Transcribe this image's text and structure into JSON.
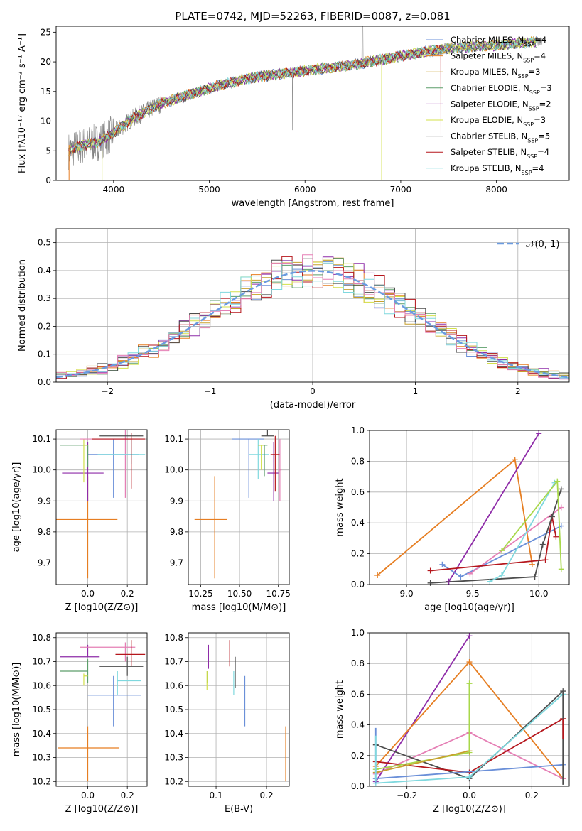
{
  "colors": {
    "Chabrier MILES": "#6a8fd8",
    "Salpeter MILES": "#e67e22",
    "Kroupa MILES": "#c7a02e",
    "Chabrier ELODIE": "#5c9e6a",
    "Salpeter ELODIE": "#8e2ba8",
    "Kroupa ELODIE": "#d3e04a",
    "Chabrier STELIB": "#4d4d4d",
    "Salpeter STELIB": "#b5161c",
    "Kroupa STELIB": "#7fd8de",
    "pink": "#e57fb5",
    "lime": "#a8d84a",
    "spectrum": "#808080",
    "normal": "#6a9be0"
  },
  "chart_data": [
    {
      "id": "spectrum",
      "type": "line",
      "title": "PLATE=0742, MJD=52263, FIBERID=0087, z=0.081",
      "xlabel": "wavelength [Angstrom, rest frame]",
      "ylabel": "Flux [fλ10⁻¹⁷ erg cm⁻² s⁻¹ A⁻¹]",
      "xlim": [
        3400,
        8760
      ],
      "ylim": [
        0,
        26
      ],
      "xticks": [
        4000,
        5000,
        6000,
        7000,
        8000
      ],
      "yticks": [
        0,
        5,
        10,
        15,
        20,
        25
      ],
      "continuum": [
        [
          3530,
          5
        ],
        [
          3700,
          6
        ],
        [
          3850,
          6.5
        ],
        [
          4000,
          8
        ],
        [
          4200,
          10.5
        ],
        [
          4500,
          13
        ],
        [
          4800,
          14.5
        ],
        [
          5100,
          16
        ],
        [
          5500,
          17.5
        ],
        [
          6000,
          18.5
        ],
        [
          6500,
          19.5
        ],
        [
          7000,
          21
        ],
        [
          7500,
          22.3
        ],
        [
          8000,
          22.8
        ],
        [
          8500,
          23.5
        ]
      ],
      "legend": [
        {
          "name": "Chabrier MILES",
          "nssp": "4"
        },
        {
          "name": "Salpeter MILES",
          "nssp": "4"
        },
        {
          "name": "Kroupa MILES",
          "nssp": "3"
        },
        {
          "name": "Chabrier ELODIE",
          "nssp": "3"
        },
        {
          "name": "Salpeter ELODIE",
          "nssp": "2"
        },
        {
          "name": "Kroupa ELODIE",
          "nssp": "3"
        },
        {
          "name": "Chabrier STELIB",
          "nssp": "5"
        },
        {
          "name": "Salpeter STELIB",
          "nssp": "4"
        },
        {
          "name": "Kroupa STELIB",
          "nssp": "4"
        }
      ]
    },
    {
      "id": "residuals",
      "type": "bar",
      "xlabel": "(data-model)/error",
      "ylabel": "Normed distribution",
      "xlim": [
        -2.5,
        2.5
      ],
      "ylim": [
        0,
        0.55
      ],
      "xticks": [
        -2,
        -1,
        0,
        1,
        2
      ],
      "yticks": [
        0.0,
        0.1,
        0.2,
        0.3,
        0.4,
        0.5
      ],
      "bin_width": 0.1,
      "legend": "𝒩(0, 1)",
      "grid": true
    },
    {
      "id": "age_vs_Z",
      "type": "scatter",
      "xlabel": "Z [log10(Z/Z⊙)]",
      "ylabel": "age  [log10(age/yr)]",
      "xlim": [
        -0.16,
        0.3
      ],
      "ylim": [
        9.63,
        10.13
      ],
      "xticks": [
        0.0,
        0.2
      ],
      "yticks": [
        9.7,
        9.8,
        9.9,
        10.0,
        10.1
      ],
      "points": [
        {
          "c": "Salpeter MILES",
          "x": 0.0,
          "y": 9.84,
          "xerr": [
            0.16,
            0.15
          ],
          "yerr": [
            0.19,
            0.14
          ]
        },
        {
          "c": "Chabrier MILES",
          "x": 0.13,
          "y": 10.05,
          "xerr": [
            0.13,
            0.13
          ],
          "yerr": [
            0.14,
            0.05
          ]
        },
        {
          "c": "Salpeter ELODIE",
          "x": 0.0,
          "y": 9.99,
          "xerr": [
            0.13,
            0.08
          ],
          "yerr": [
            0.09,
            0.1
          ]
        },
        {
          "c": "Chabrier ELODIE",
          "x": 0.0,
          "y": 10.08,
          "xerr": [
            0.14,
            0.0
          ],
          "yerr": [
            0.07,
            0.0
          ]
        },
        {
          "c": "Kroupa ELODIE",
          "x": -0.02,
          "y": 10.08,
          "xerr": [
            0.0,
            0.02
          ],
          "yerr": [
            0.12,
            0.02
          ]
        },
        {
          "c": "pink",
          "x": 0.19,
          "y": 10.1,
          "xerr": [
            0.23,
            0.03
          ],
          "yerr": [
            0.19,
            0.03
          ]
        },
        {
          "c": "Kroupa STELIB",
          "x": 0.22,
          "y": 10.05,
          "xerr": [
            0.17,
            0.07
          ],
          "yerr": [
            0.03,
            0.05
          ]
        },
        {
          "c": "Salpeter STELIB",
          "x": 0.22,
          "y": 10.1,
          "xerr": [
            0.2,
            0.07
          ],
          "yerr": [
            0.16,
            0.02
          ]
        },
        {
          "c": "Chabrier STELIB",
          "x": 0.2,
          "y": 10.11,
          "xerr": [
            0.14,
            0.08
          ],
          "yerr": [
            0.0,
            0.0
          ]
        }
      ]
    },
    {
      "id": "age_vs_mass",
      "type": "scatter",
      "xlabel": "mass [log10(M/M⊙)]",
      "ylabel": "",
      "xlim": [
        10.17,
        10.82
      ],
      "ylim": [
        9.63,
        10.13
      ],
      "xticks": [
        10.25,
        10.5,
        10.75
      ],
      "yticks": [
        9.7,
        9.8,
        9.9,
        10.0,
        10.1
      ],
      "points": [
        {
          "c": "Salpeter MILES",
          "x": 10.34,
          "y": 9.84,
          "xerr": [
            0.13,
            0.08
          ],
          "yerr": [
            0.19,
            0.14
          ]
        },
        {
          "c": "Chabrier MILES",
          "x": 10.56,
          "y": 10.1,
          "xerr": [
            0.11,
            0.1
          ],
          "yerr": [
            0.19,
            0.0
          ]
        },
        {
          "c": "Kroupa STELIB",
          "x": 10.62,
          "y": 10.05,
          "xerr": [
            0.06,
            0.07
          ],
          "yerr": [
            0.08,
            0.05
          ]
        },
        {
          "c": "Chabrier ELODIE",
          "x": 10.66,
          "y": 10.08,
          "xerr": [
            0.04,
            0.02
          ],
          "yerr": [
            0.1,
            0.0
          ]
        },
        {
          "c": "Kroupa ELODIE",
          "x": 10.64,
          "y": 10.08,
          "xerr": [
            0.02,
            0.02
          ],
          "yerr": [
            0.08,
            0.0
          ]
        },
        {
          "c": "Salpeter ELODIE",
          "x": 10.72,
          "y": 9.99,
          "xerr": [
            0.04,
            0.03
          ],
          "yerr": [
            0.09,
            0.1
          ]
        },
        {
          "c": "Chabrier STELIB",
          "x": 10.68,
          "y": 10.11,
          "xerr": [
            0.04,
            0.04
          ],
          "yerr": [
            0.0,
            0.02
          ]
        },
        {
          "c": "Salpeter STELIB",
          "x": 10.73,
          "y": 10.05,
          "xerr": [
            0.03,
            0.03
          ],
          "yerr": [
            0.12,
            0.06
          ]
        },
        {
          "c": "pink",
          "x": 10.76,
          "y": 10.0,
          "xerr": [
            0.01,
            0.01
          ],
          "yerr": [
            0.1,
            0.1
          ]
        }
      ]
    },
    {
      "id": "weight_vs_age",
      "type": "line",
      "xlabel": "age  [log10(age/yr)]",
      "ylabel": "mass weight",
      "xlim": [
        8.72,
        10.23
      ],
      "ylim": [
        0.0,
        1.0
      ],
      "xticks": [
        9.0,
        9.5,
        10.0
      ],
      "yticks": [
        0.0,
        0.2,
        0.4,
        0.6,
        0.8,
        1.0
      ],
      "grid": true,
      "series": [
        {
          "c": "Salpeter MILES",
          "x": [
            8.78,
            9.82,
            9.95
          ],
          "y": [
            0.06,
            0.81,
            0.13
          ]
        },
        {
          "c": "Salpeter ELODIE",
          "x": [
            9.32,
            10.0
          ],
          "y": [
            0.02,
            0.98
          ]
        },
        {
          "c": "Chabrier MILES",
          "x": [
            9.27,
            9.41,
            10.17
          ],
          "y": [
            0.13,
            0.05,
            0.38
          ]
        },
        {
          "c": "pink",
          "x": [
            9.48,
            10.17
          ],
          "y": [
            0.07,
            0.5
          ]
        },
        {
          "c": "Salpeter STELIB",
          "x": [
            9.18,
            10.05,
            10.1,
            10.13
          ],
          "y": [
            0.09,
            0.16,
            0.44,
            0.31
          ]
        },
        {
          "c": "Chabrier STELIB",
          "x": [
            9.18,
            9.97,
            10.03,
            10.1,
            10.17
          ],
          "y": [
            0.01,
            0.05,
            0.26,
            0.44,
            0.62
          ]
        },
        {
          "c": "Kroupa STELIB",
          "x": [
            9.63,
            9.72,
            10.12
          ],
          "y": [
            0.02,
            0.06,
            0.66
          ]
        },
        {
          "c": "lime",
          "x": [
            9.72,
            10.14,
            10.17
          ],
          "y": [
            0.22,
            0.67,
            0.1
          ]
        }
      ]
    },
    {
      "id": "mass_vs_Z",
      "type": "scatter",
      "xlabel": "Z [log10(Z/Z⊙)]",
      "ylabel": "mass [log10(M/M⊙)]",
      "xlim": [
        -0.16,
        0.3
      ],
      "ylim": [
        10.18,
        10.82
      ],
      "xticks": [
        0.0,
        0.2
      ],
      "yticks": [
        10.2,
        10.3,
        10.4,
        10.5,
        10.6,
        10.7,
        10.8
      ],
      "points": [
        {
          "c": "Salpeter MILES",
          "x": 0.0,
          "y": 10.34,
          "xerr": [
            0.15,
            0.16
          ],
          "yerr": [
            0.14,
            0.09
          ]
        },
        {
          "c": "Chabrier MILES",
          "x": 0.13,
          "y": 10.56,
          "xerr": [
            0.13,
            0.14
          ],
          "yerr": [
            0.13,
            0.08
          ]
        },
        {
          "c": "Salpeter ELODIE",
          "x": 0.0,
          "y": 10.72,
          "xerr": [
            0.14,
            0.06
          ],
          "yerr": [
            0.0,
            0.05
          ]
        },
        {
          "c": "Chabrier ELODIE",
          "x": 0.0,
          "y": 10.66,
          "xerr": [
            0.14,
            0.0
          ],
          "yerr": [
            0.05,
            0.05
          ]
        },
        {
          "c": "Kroupa ELODIE",
          "x": -0.02,
          "y": 10.64,
          "xerr": [
            0.0,
            0.02
          ],
          "yerr": [
            0.04,
            0.01
          ]
        },
        {
          "c": "pink",
          "x": 0.19,
          "y": 10.76,
          "xerr": [
            0.23,
            0.05
          ],
          "yerr": [
            0.06,
            0.02
          ]
        },
        {
          "c": "Kroupa STELIB",
          "x": 0.15,
          "y": 10.62,
          "xerr": [
            0.0,
            0.12
          ],
          "yerr": [
            0.06,
            0.04
          ]
        },
        {
          "c": "Salpeter STELIB",
          "x": 0.22,
          "y": 10.73,
          "xerr": [
            0.08,
            0.07
          ],
          "yerr": [
            0.05,
            0.06
          ]
        },
        {
          "c": "Chabrier STELIB",
          "x": 0.2,
          "y": 10.68,
          "xerr": [
            0.14,
            0.08
          ],
          "yerr": [
            0.04,
            0.04
          ]
        }
      ]
    },
    {
      "id": "mass_vs_ebv",
      "type": "scatter",
      "xlabel": "E(B-V)",
      "ylabel": "",
      "xlim": [
        0.045,
        0.245
      ],
      "ylim": [
        10.18,
        10.82
      ],
      "xticks": [
        0.1,
        0.2
      ],
      "yticks": [
        10.2,
        10.3,
        10.4,
        10.5,
        10.6,
        10.7,
        10.8
      ],
      "points": [
        {
          "c": "Salpeter MILES",
          "x": 0.238,
          "y": 10.34,
          "yerr": [
            0.14,
            0.09
          ]
        },
        {
          "c": "Chabrier MILES",
          "x": 0.157,
          "y": 10.56,
          "yerr": [
            0.13,
            0.08
          ]
        },
        {
          "c": "Kroupa STELIB",
          "x": 0.135,
          "y": 10.62,
          "yerr": [
            0.06,
            0.04
          ]
        },
        {
          "c": "Chabrier STELIB",
          "x": 0.138,
          "y": 10.68,
          "yerr": [
            0.09,
            0.04
          ]
        },
        {
          "c": "Salpeter STELIB",
          "x": 0.127,
          "y": 10.73,
          "yerr": [
            0.05,
            0.06
          ]
        },
        {
          "c": "Salpeter ELODIE",
          "x": 0.085,
          "y": 10.72,
          "yerr": [
            0.05,
            0.05
          ]
        },
        {
          "c": "Chabrier ELODIE",
          "x": 0.083,
          "y": 10.66,
          "yerr": [
            0.05,
            0.0
          ]
        },
        {
          "c": "Kroupa ELODIE",
          "x": 0.082,
          "y": 10.62,
          "yerr": [
            0.04,
            0.04
          ]
        }
      ]
    },
    {
      "id": "weight_vs_Z",
      "type": "line",
      "xlabel": "Z [log10(Z/Z⊙)]",
      "ylabel": "mass weight",
      "xlim": [
        -0.32,
        0.32
      ],
      "ylim": [
        0.0,
        1.0
      ],
      "xticks": [
        -0.2,
        0.0,
        0.2
      ],
      "yticks": [
        0.0,
        0.2,
        0.4,
        0.6,
        0.8,
        1.0
      ],
      "grid": true,
      "series": [
        {
          "c": "Salpeter ELODIE",
          "x": [
            -0.3,
            0.0
          ],
          "y": [
            0.03,
            0.98
          ]
        },
        {
          "c": "Salpeter MILES",
          "x": [
            -0.3,
            0.0,
            0.3
          ],
          "y": [
            0.13,
            0.81,
            0.05
          ]
        },
        {
          "c": "pink",
          "x": [
            -0.3,
            0.0,
            0.3
          ],
          "y": [
            0.08,
            0.35,
            0.05
          ]
        },
        {
          "c": "Chabrier STELIB",
          "x": [
            -0.3,
            0.0,
            0.3
          ],
          "y": [
            0.27,
            0.05,
            0.62
          ]
        },
        {
          "c": "Salpeter STELIB",
          "x": [
            -0.3,
            0.0,
            0.3
          ],
          "y": [
            0.16,
            0.09,
            0.44
          ]
        },
        {
          "c": "Chabrier MILES",
          "x": [
            -0.3,
            0.3
          ],
          "y": [
            0.05,
            0.14
          ]
        },
        {
          "c": "Kroupa STELIB",
          "x": [
            -0.3,
            0.0,
            0.3
          ],
          "y": [
            0.02,
            0.06,
            0.6
          ]
        },
        {
          "c": "lime",
          "x": [
            -0.3,
            0.0,
            0.0
          ],
          "y": [
            0.11,
            0.22,
            0.67
          ]
        },
        {
          "c": "Kroupa MILES",
          "x": [
            -0.3,
            0.0
          ],
          "y": [
            0.09,
            0.23
          ]
        }
      ],
      "vertical_marks": [
        {
          "c": "Chabrier MILES",
          "x": -0.3,
          "y": [
            0.02,
            0.38
          ]
        },
        {
          "c": "Kroupa STELIB",
          "x": -0.3,
          "y": [
            0.03,
            0.33
          ]
        },
        {
          "c": "Chabrier STELIB",
          "x": 0.3,
          "y": [
            0.01,
            0.62
          ]
        },
        {
          "c": "Salpeter STELIB",
          "x": 0.3,
          "y": [
            0.31,
            0.44
          ]
        },
        {
          "c": "lime",
          "x": 0.0,
          "y": [
            0.22,
            0.67
          ]
        }
      ]
    }
  ]
}
